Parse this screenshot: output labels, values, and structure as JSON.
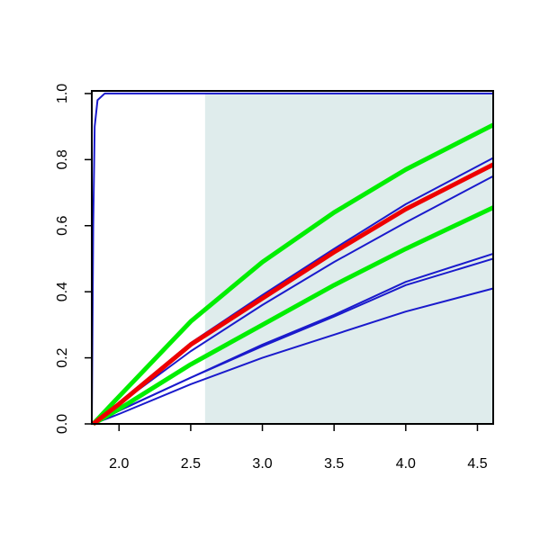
{
  "chart_data": {
    "type": "line",
    "xlim": [
      1.81,
      4.61
    ],
    "ylim": [
      0,
      1.008
    ],
    "xticks": [
      {
        "value": 2,
        "label": "2.0"
      },
      {
        "value": 2.5,
        "label": "2.5"
      },
      {
        "value": 3,
        "label": "3.0"
      },
      {
        "value": 3.5,
        "label": "3.5"
      },
      {
        "value": 4,
        "label": "4.0"
      },
      {
        "value": 4.5,
        "label": "4.5"
      }
    ],
    "yticks": [
      {
        "value": 0,
        "label": "0.0"
      },
      {
        "value": 0.2,
        "label": "0.2"
      },
      {
        "value": 0.4,
        "label": "0.4"
      },
      {
        "value": 0.6,
        "label": "0.6"
      },
      {
        "value": 0.8,
        "label": "0.8"
      },
      {
        "value": 1,
        "label": "1.0"
      }
    ],
    "shaded_region": {
      "x": [
        2.6,
        4.61
      ],
      "y": [
        0,
        1
      ],
      "color": "#dfecec"
    },
    "series": [
      {
        "color": "#1a1acc",
        "x": [
          1.81,
          1.82,
          1.83,
          1.85,
          1.9,
          4.61
        ],
        "values": [
          0,
          0.6,
          0.9,
          0.98,
          1,
          1
        ]
      },
      {
        "color": "#1a1acc",
        "x": [
          1.82,
          2.0,
          2.5,
          3.0,
          3.5,
          4.0,
          4.61
        ],
        "values": [
          0,
          0.03,
          0.12,
          0.2,
          0.27,
          0.34,
          0.41
        ]
      },
      {
        "color": "#1a1acc",
        "x": [
          1.82,
          2.0,
          2.5,
          3.0,
          3.5,
          4.0,
          4.61
        ],
        "values": [
          0,
          0.04,
          0.14,
          0.235,
          0.325,
          0.42,
          0.5
        ]
      },
      {
        "color": "#1a1acc",
        "x": [
          1.82,
          2.0,
          2.5,
          3.0,
          3.5,
          4.0,
          4.61
        ],
        "values": [
          0,
          0.04,
          0.14,
          0.24,
          0.33,
          0.43,
          0.515
        ]
      },
      {
        "color": "#1a1acc",
        "x": [
          1.82,
          2.0,
          2.5,
          3.0,
          3.5,
          4.0,
          4.61
        ],
        "values": [
          0,
          0.06,
          0.22,
          0.36,
          0.49,
          0.61,
          0.75
        ]
      },
      {
        "color": "#1a1acc",
        "x": [
          1.82,
          2.0,
          2.5,
          3.0,
          3.5,
          4.0,
          4.61
        ],
        "values": [
          0,
          0.065,
          0.245,
          0.39,
          0.53,
          0.665,
          0.805
        ]
      },
      {
        "color": "#00ee00",
        "x": [
          1.82,
          2.0,
          2.5,
          3.0,
          3.5,
          4.0,
          4.61
        ],
        "values": [
          0,
          0.045,
          0.18,
          0.3,
          0.42,
          0.53,
          0.655
        ]
      },
      {
        "color": "#00ee00",
        "x": [
          1.82,
          2.0,
          2.5,
          3.0,
          3.5,
          4.0,
          4.61
        ],
        "values": [
          0,
          0.083,
          0.31,
          0.49,
          0.64,
          0.77,
          0.905
        ]
      },
      {
        "color": "#ee0000",
        "x": [
          1.82,
          2.0,
          2.5,
          3.0,
          3.5,
          4.0,
          4.61
        ],
        "values": [
          0,
          0.06,
          0.24,
          0.38,
          0.52,
          0.65,
          0.785
        ]
      }
    ]
  }
}
